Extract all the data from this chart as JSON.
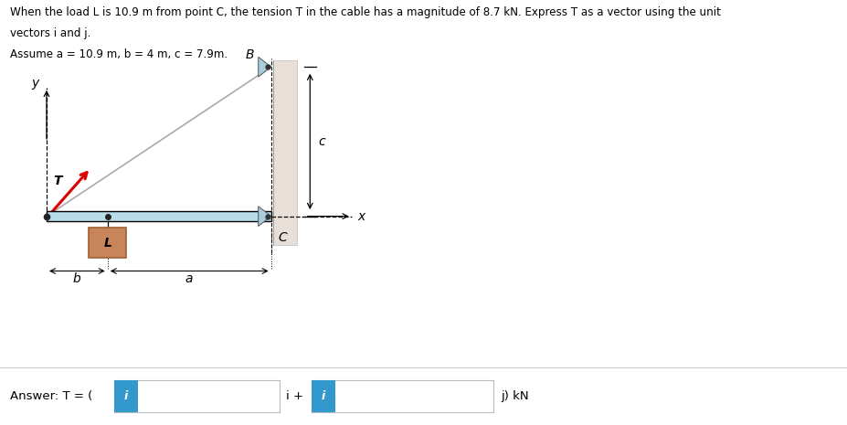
{
  "title_line1": "When the load L is 10.9 m from point C, the tension T in the cable has a magnitude of 8.7 kN. Express T as a vector using the unit",
  "title_line2": "vectors i and j.",
  "title_line3": "Assume a = 10.9 m, b = 4 m, c = 7.9m.",
  "answer_text": "Answer: T = (",
  "answer_mid": "i +",
  "answer_end": "j) kN",
  "beam_color": "#b8dce8",
  "beam_edge_color": "#000000",
  "wall_color": "#e8e0d8",
  "load_box_color": "#c8845a",
  "load_box_edge": "#a06030",
  "arrow_color": "#dd0000",
  "input_box_color": "#3399cc",
  "input_box_text": "i",
  "bg_color": "#ffffff",
  "triangle_color": "#a8cce0",
  "cable_color": "#aaaaaa",
  "pin_color": "#888888",
  "dim_arrow_color": "#000000"
}
